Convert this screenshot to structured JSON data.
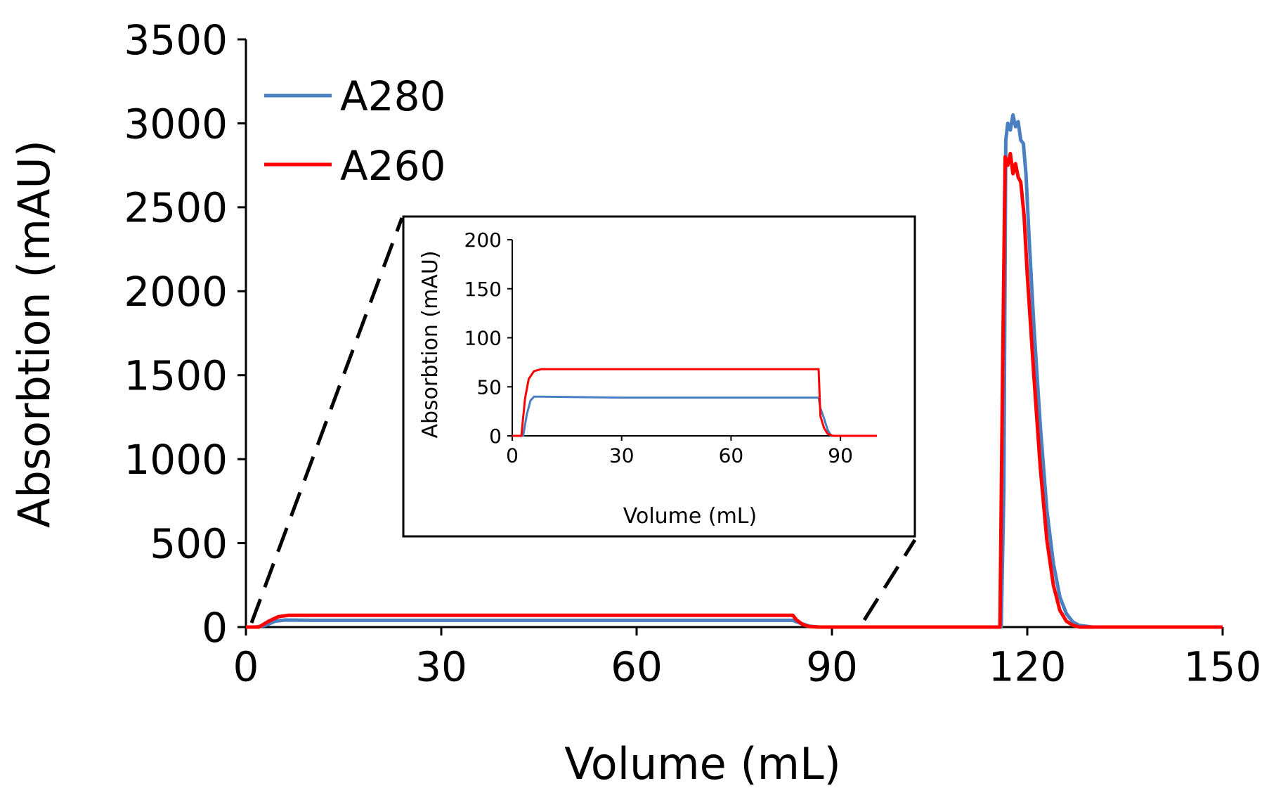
{
  "chart_data": [
    {
      "id": "main",
      "type": "line",
      "title": "",
      "xlabel": "Volume (mL)",
      "ylabel": "Absorbtion (mAU)",
      "xlim": [
        0,
        150
      ],
      "ylim": [
        0,
        3500
      ],
      "xticks": [
        0,
        30,
        60,
        90,
        120,
        150
      ],
      "yticks": [
        0,
        500,
        1000,
        1500,
        2000,
        2500,
        3000,
        3500
      ],
      "grid": false,
      "legend": "top-left",
      "series": [
        {
          "name": "A280",
          "color": "#4a7fc1",
          "points": [
            [
              0,
              0
            ],
            [
              1.5,
              0
            ],
            [
              3,
              10
            ],
            [
              4.5,
              35
            ],
            [
              6,
              42
            ],
            [
              10,
              40
            ],
            [
              30,
              40
            ],
            [
              60,
              40
            ],
            [
              84,
              40
            ],
            [
              85,
              25
            ],
            [
              86.5,
              5
            ],
            [
              88,
              0
            ],
            [
              116,
              0
            ],
            [
              116.4,
              800
            ],
            [
              116.7,
              2900
            ],
            [
              117,
              3000
            ],
            [
              117.4,
              2960
            ],
            [
              117.8,
              3050
            ],
            [
              118.2,
              2980
            ],
            [
              118.6,
              3010
            ],
            [
              119,
              2900
            ],
            [
              119.4,
              2880
            ],
            [
              119.8,
              2700
            ],
            [
              120.3,
              2300
            ],
            [
              121,
              1800
            ],
            [
              122,
              1200
            ],
            [
              123,
              700
            ],
            [
              124,
              380
            ],
            [
              125,
              180
            ],
            [
              126,
              80
            ],
            [
              127,
              30
            ],
            [
              128,
              10
            ],
            [
              130,
              0
            ],
            [
              150,
              0
            ]
          ]
        },
        {
          "name": "A260",
          "color": "#ff0000",
          "points": [
            [
              0,
              0
            ],
            [
              2,
              0
            ],
            [
              3.5,
              35
            ],
            [
              5,
              62
            ],
            [
              6.5,
              70
            ],
            [
              10,
              70
            ],
            [
              30,
              70
            ],
            [
              60,
              70
            ],
            [
              84,
              70
            ],
            [
              84.5,
              45
            ],
            [
              85.5,
              15
            ],
            [
              86.5,
              3
            ],
            [
              88,
              0
            ],
            [
              115.8,
              0
            ],
            [
              116.2,
              1500
            ],
            [
              116.6,
              2800
            ],
            [
              117,
              2750
            ],
            [
              117.4,
              2820
            ],
            [
              117.8,
              2700
            ],
            [
              118.2,
              2760
            ],
            [
              118.6,
              2680
            ],
            [
              119,
              2650
            ],
            [
              119.5,
              2450
            ],
            [
              120,
              2100
            ],
            [
              121,
              1500
            ],
            [
              122,
              950
            ],
            [
              123,
              520
            ],
            [
              124,
              250
            ],
            [
              125,
              100
            ],
            [
              126,
              35
            ],
            [
              127,
              10
            ],
            [
              128,
              0
            ],
            [
              150,
              0
            ]
          ]
        }
      ]
    },
    {
      "id": "inset",
      "type": "line",
      "title": "",
      "xlabel": "Volume (mL)",
      "ylabel": "Absorbtion (mAU)",
      "xlim": [
        0,
        100
      ],
      "ylim": [
        0,
        200
      ],
      "xticks": [
        0,
        30,
        60,
        90
      ],
      "yticks": [
        0,
        50,
        100,
        150,
        200
      ],
      "grid": false,
      "series": [
        {
          "name": "A280",
          "color": "#4a7fc1",
          "points": [
            [
              0,
              0
            ],
            [
              3,
              0
            ],
            [
              4,
              22
            ],
            [
              5,
              36
            ],
            [
              6,
              40
            ],
            [
              8,
              40
            ],
            [
              30,
              39
            ],
            [
              60,
              39
            ],
            [
              84,
              39
            ],
            [
              84.5,
              28
            ],
            [
              85.5,
              18
            ],
            [
              86.5,
              6
            ],
            [
              87.5,
              0
            ],
            [
              100,
              0
            ]
          ]
        },
        {
          "name": "A260",
          "color": "#ff0000",
          "points": [
            [
              0,
              0
            ],
            [
              2.5,
              0
            ],
            [
              3.5,
              38
            ],
            [
              4.5,
              58
            ],
            [
              6,
              66
            ],
            [
              8,
              68
            ],
            [
              30,
              68
            ],
            [
              60,
              68
            ],
            [
              84,
              68
            ],
            [
              84.5,
              20
            ],
            [
              85.5,
              8
            ],
            [
              86.5,
              2
            ],
            [
              88,
              0
            ],
            [
              100,
              0
            ]
          ]
        }
      ]
    }
  ]
}
